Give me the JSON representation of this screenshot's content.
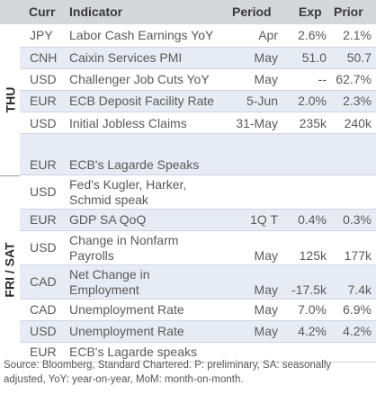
{
  "header": {
    "curr": "Curr",
    "indicator": "Indicator",
    "period": "Period",
    "exp": "Exp",
    "prior": "Prior"
  },
  "sections": {
    "thu": "THU",
    "frisat": "FRI / SAT"
  },
  "rows": [
    {
      "curr": "JPY",
      "indicator": [
        "Labor Cash Earnings YoY"
      ],
      "period": "Apr",
      "exp": "2.6%",
      "prior": "2.1%"
    },
    {
      "curr": "CNH",
      "indicator": [
        "Caixin Services PMI"
      ],
      "period": "May",
      "exp": "51.0",
      "prior": "50.7"
    },
    {
      "curr": "USD",
      "indicator": [
        "Challenger Job Cuts YoY"
      ],
      "period": "May",
      "exp": "--",
      "prior": "62.7%"
    },
    {
      "curr": "EUR",
      "indicator": [
        "ECB Deposit Facility Rate"
      ],
      "period": "5-Jun",
      "exp": "2.0%",
      "prior": "2.3%"
    },
    {
      "curr": "USD",
      "indicator": [
        "Initial Jobless Claims"
      ],
      "period": "31-May",
      "exp": "235k",
      "prior": "240k"
    },
    {
      "curr": "EUR",
      "indicator": [
        "ECB's Lagarde Speaks"
      ],
      "period": "",
      "exp": "",
      "prior": ""
    },
    {
      "curr": "USD",
      "indicator": [
        "Fed's Kugler, Harker,",
        "Schmid speak"
      ],
      "period": "",
      "exp": "",
      "prior": ""
    },
    {
      "curr": "EUR",
      "indicator": [
        "GDP SA QoQ"
      ],
      "period": "1Q T",
      "exp": "0.4%",
      "prior": "0.3%"
    },
    {
      "curr": "USD",
      "indicator": [
        "Change in Nonfarm",
        "Payrolls"
      ],
      "period": "May",
      "exp": "125k",
      "prior": "177k"
    },
    {
      "curr": "CAD",
      "indicator": [
        "Net Change in",
        "Employment"
      ],
      "period": "May",
      "exp": "-17.5k",
      "prior": "7.4k"
    },
    {
      "curr": "CAD",
      "indicator": [
        "Unemployment Rate"
      ],
      "period": "May",
      "exp": "7.0%",
      "prior": "6.9%"
    },
    {
      "curr": "USD",
      "indicator": [
        "Unemployment Rate"
      ],
      "period": "May",
      "exp": "4.2%",
      "prior": "4.2%"
    },
    {
      "curr": "EUR",
      "indicator": [
        "ECB's Lagarde speaks"
      ],
      "period": "",
      "exp": "",
      "prior": ""
    }
  ],
  "footer": {
    "line1": "Source: Bloomberg, Standard Chartered. P: preliminary, SA: seasonally",
    "line2": "adjusted, YoY: year-on-year, MoM: month-on-month."
  }
}
